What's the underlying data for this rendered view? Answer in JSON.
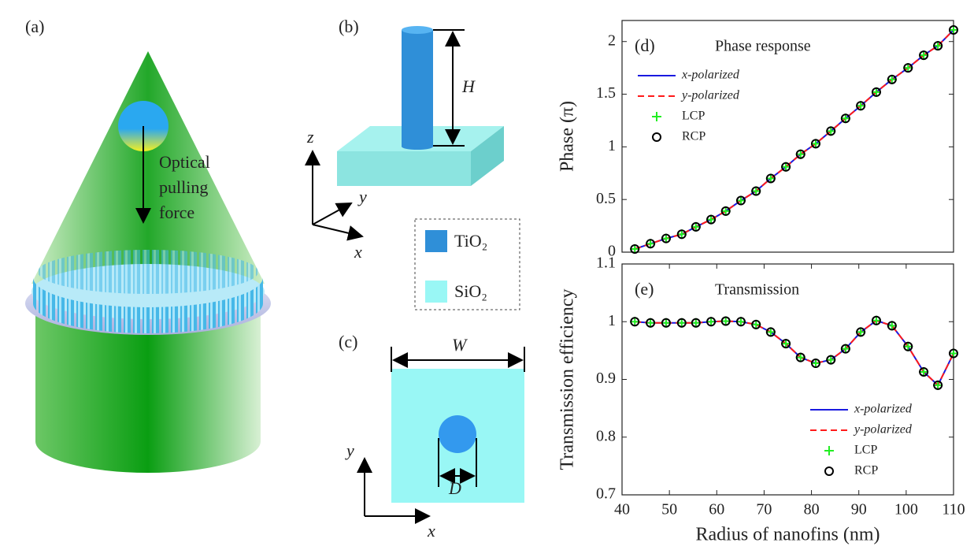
{
  "panels": {
    "a": {
      "label": "(a)",
      "text": [
        "Optical",
        "pulling",
        "force"
      ]
    },
    "b": {
      "label": "(b)",
      "height": "H",
      "axes": [
        "z",
        "y",
        "x"
      ],
      "legend": [
        "TiO₂",
        "SiO₂"
      ]
    },
    "c": {
      "label": "(c)",
      "width": "W",
      "diameter": "D",
      "axes": [
        "y",
        "x"
      ]
    }
  },
  "chart_data": [
    {
      "type": "line",
      "label": "(d)",
      "title": "Phase response",
      "ylabel": "Phase (π)",
      "xlim": [
        40,
        110
      ],
      "ylim": [
        0,
        2.2
      ],
      "yticks": [
        0,
        0.5,
        1,
        1.5,
        2
      ],
      "legend": "upper left",
      "x": [
        42.7,
        46.0,
        49.3,
        52.6,
        55.6,
        58.8,
        61.9,
        65.1,
        68.3,
        71.4,
        74.6,
        77.7,
        80.9,
        84.1,
        87.2,
        90.4,
        93.7,
        97.0,
        100.4,
        103.7,
        106.7,
        110
      ],
      "series": [
        {
          "name": "x-polarized",
          "color": "#1a1ae0",
          "style": "solid",
          "values": [
            0.03,
            0.08,
            0.13,
            0.17,
            0.24,
            0.31,
            0.39,
            0.49,
            0.58,
            0.7,
            0.81,
            0.93,
            1.03,
            1.15,
            1.27,
            1.39,
            1.52,
            1.64,
            1.75,
            1.87,
            1.96,
            2.11
          ]
        },
        {
          "name": "y-polarized",
          "color": "#ff1a1a",
          "style": "dashed",
          "values": [
            0.03,
            0.08,
            0.13,
            0.17,
            0.24,
            0.31,
            0.39,
            0.49,
            0.58,
            0.7,
            0.81,
            0.93,
            1.03,
            1.15,
            1.27,
            1.39,
            1.52,
            1.64,
            1.75,
            1.87,
            1.96,
            2.11
          ]
        },
        {
          "name": "LCP",
          "color": "#22ee22",
          "style": "plus",
          "values": [
            0.03,
            0.08,
            0.13,
            0.17,
            0.24,
            0.31,
            0.39,
            0.49,
            0.58,
            0.7,
            0.81,
            0.93,
            1.03,
            1.15,
            1.27,
            1.39,
            1.52,
            1.64,
            1.75,
            1.87,
            1.96,
            2.11
          ]
        },
        {
          "name": "RCP",
          "color": "#000000",
          "style": "circle",
          "values": [
            0.03,
            0.08,
            0.13,
            0.17,
            0.24,
            0.31,
            0.39,
            0.49,
            0.58,
            0.7,
            0.81,
            0.93,
            1.03,
            1.15,
            1.27,
            1.39,
            1.52,
            1.64,
            1.75,
            1.87,
            1.96,
            2.11
          ]
        }
      ]
    },
    {
      "type": "line",
      "label": "(e)",
      "title": "Transmission",
      "ylabel": "Transmission efficiency",
      "xlabel": "Radius of nanofins (nm)",
      "xlim": [
        40,
        110
      ],
      "ylim": [
        0.7,
        1.1
      ],
      "xticks": [
        40,
        50,
        60,
        70,
        80,
        90,
        100,
        110
      ],
      "yticks": [
        0.7,
        0.8,
        0.9,
        1,
        1.1
      ],
      "legend": "lower right",
      "x": [
        42.7,
        46.0,
        49.3,
        52.6,
        55.6,
        58.8,
        61.9,
        65.1,
        68.3,
        71.4,
        74.6,
        77.7,
        80.9,
        84.1,
        87.2,
        90.4,
        93.7,
        97.0,
        100.4,
        103.7,
        106.7,
        110
      ],
      "series": [
        {
          "name": "x-polarized",
          "color": "#1a1ae0",
          "style": "solid",
          "values": [
            1.0,
            0.998,
            0.998,
            0.998,
            0.998,
            1.0,
            1.001,
            1.0,
            0.995,
            0.982,
            0.962,
            0.938,
            0.928,
            0.934,
            0.953,
            0.982,
            1.002,
            0.993,
            0.957,
            0.913,
            0.89,
            0.945
          ]
        },
        {
          "name": "y-polarized",
          "color": "#ff1a1a",
          "style": "dashed",
          "values": [
            1.0,
            0.998,
            0.998,
            0.998,
            0.998,
            1.0,
            1.001,
            1.0,
            0.995,
            0.982,
            0.962,
            0.938,
            0.928,
            0.934,
            0.953,
            0.982,
            1.002,
            0.993,
            0.957,
            0.913,
            0.89,
            0.945
          ]
        },
        {
          "name": "LCP",
          "color": "#22ee22",
          "style": "plus",
          "values": [
            1.0,
            0.998,
            0.998,
            0.998,
            0.998,
            1.0,
            1.001,
            1.0,
            0.995,
            0.982,
            0.962,
            0.938,
            0.928,
            0.934,
            0.953,
            0.982,
            1.002,
            0.993,
            0.957,
            0.913,
            0.89,
            0.945
          ]
        },
        {
          "name": "RCP",
          "color": "#000000",
          "style": "circle",
          "values": [
            1.0,
            0.998,
            0.998,
            0.998,
            0.998,
            1.0,
            1.001,
            1.0,
            0.995,
            0.982,
            0.962,
            0.938,
            0.928,
            0.934,
            0.953,
            0.982,
            1.002,
            0.993,
            0.957,
            0.913,
            0.89,
            0.945
          ]
        }
      ]
    }
  ]
}
